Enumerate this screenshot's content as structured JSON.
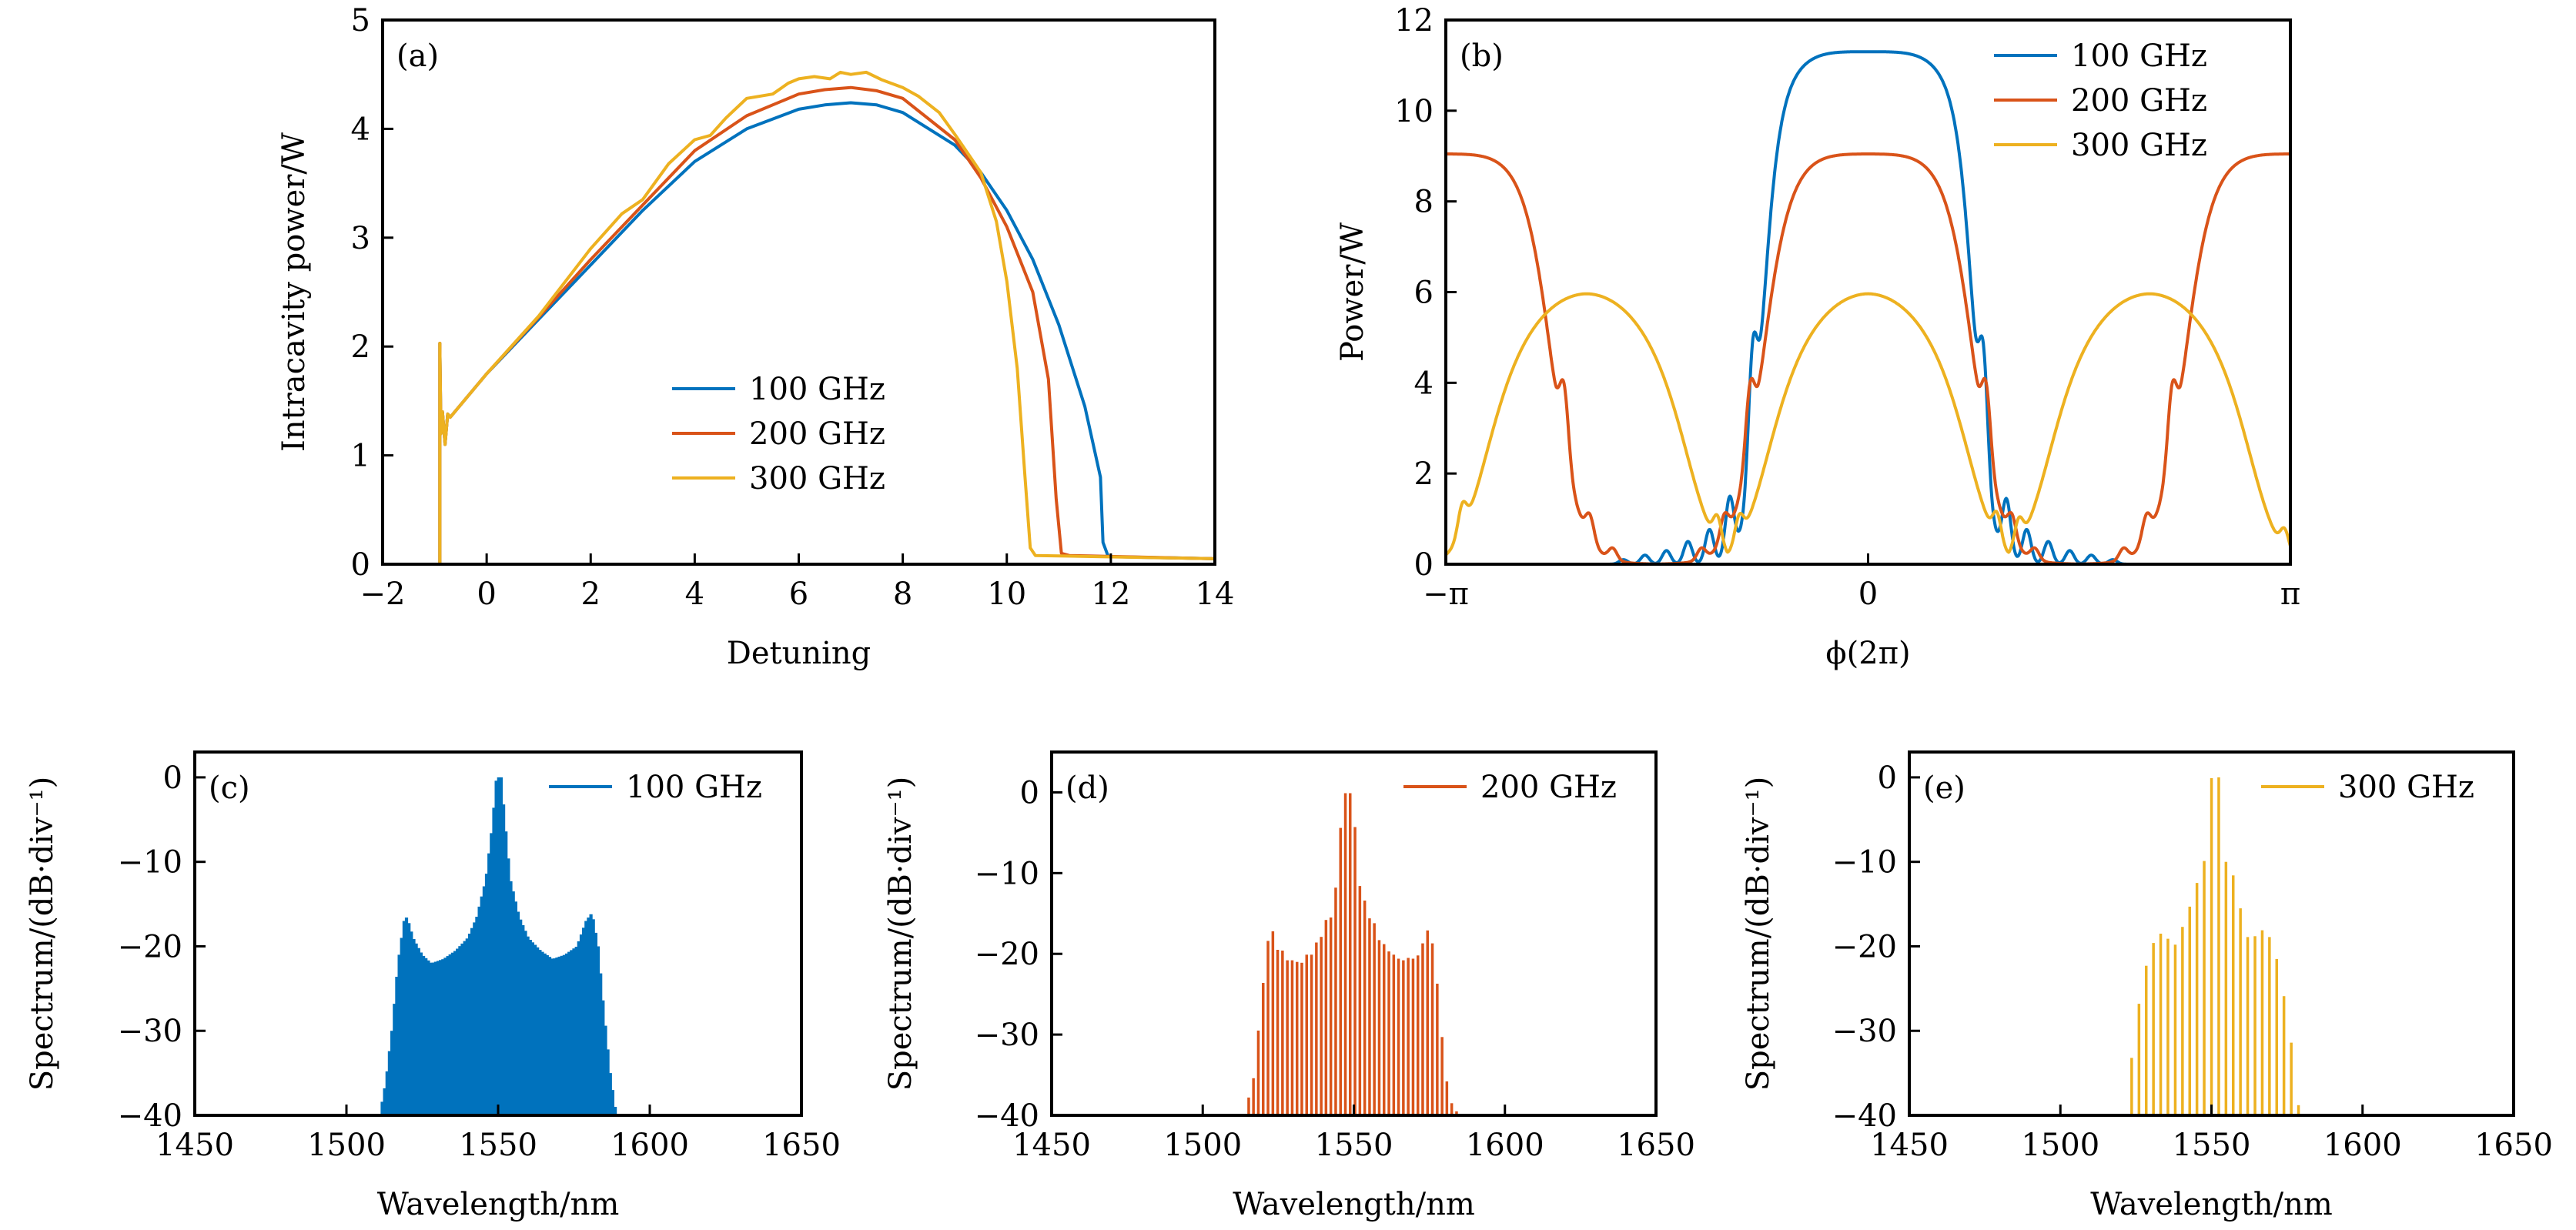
{
  "colors": {
    "c100": "#0072BD",
    "c200": "#D95319",
    "c300": "#EDB120",
    "axis": "#000000"
  },
  "chart_data": [
    {
      "id": "a",
      "type": "line",
      "panel_label": "(a)",
      "xlabel": "Detuning",
      "ylabel": "Intracavity power/W",
      "xlim": [
        -2,
        14
      ],
      "ylim": [
        0,
        5
      ],
      "xticks": [
        -2,
        0,
        2,
        4,
        6,
        8,
        10,
        12,
        14
      ],
      "xtick_labels": [
        "−2",
        "0",
        "2",
        "4",
        "6",
        "8",
        "10",
        "12",
        "14"
      ],
      "yticks": [
        0,
        1,
        2,
        3,
        4,
        5
      ],
      "ytick_labels": [
        "0",
        "1",
        "2",
        "3",
        "4",
        "5"
      ],
      "legend": {
        "placement": "center",
        "entries": [
          "100 GHz",
          "200 GHz",
          "300 GHz"
        ]
      },
      "series": [
        {
          "name": "100 GHz",
          "color_key": "c100",
          "x": [
            -0.9,
            -0.9,
            -0.88,
            -0.85,
            -0.8,
            -0.75,
            -0.7,
            0,
            1,
            2,
            3,
            4,
            5,
            6,
            6.5,
            7,
            7.5,
            8,
            9,
            9.5,
            10,
            10.5,
            11,
            11.5,
            11.8,
            11.85,
            11.95,
            14
          ],
          "y": [
            0,
            2.03,
            1.2,
            1.4,
            1.1,
            1.38,
            1.35,
            1.75,
            2.25,
            2.75,
            3.25,
            3.7,
            4.0,
            4.18,
            4.22,
            4.24,
            4.22,
            4.15,
            3.85,
            3.6,
            3.25,
            2.8,
            2.2,
            1.45,
            0.8,
            0.2,
            0.07,
            0.05
          ]
        },
        {
          "name": "200 GHz",
          "color_key": "c200",
          "x": [
            -0.9,
            -0.9,
            -0.88,
            -0.85,
            -0.8,
            -0.75,
            -0.7,
            0,
            1,
            2,
            3,
            4,
            5,
            6,
            6.5,
            7,
            7.5,
            8,
            9,
            9.5,
            10,
            10.5,
            10.8,
            10.95,
            11.05,
            11.2,
            14
          ],
          "y": [
            0,
            2.03,
            1.2,
            1.4,
            1.1,
            1.38,
            1.35,
            1.75,
            2.27,
            2.8,
            3.3,
            3.8,
            4.12,
            4.32,
            4.36,
            4.38,
            4.35,
            4.28,
            3.9,
            3.55,
            3.1,
            2.5,
            1.7,
            0.6,
            0.1,
            0.08,
            0.05
          ]
        },
        {
          "name": "300 GHz",
          "color_key": "c300",
          "x": [
            -0.9,
            -0.9,
            -0.88,
            -0.85,
            -0.8,
            -0.75,
            -0.7,
            0,
            1,
            2,
            2.6,
            3,
            3.5,
            4,
            4.3,
            4.6,
            5,
            5.5,
            5.8,
            6,
            6.3,
            6.6,
            6.8,
            7,
            7.3,
            7.6,
            8,
            8.3,
            8.7,
            9,
            9.5,
            9.8,
            10,
            10.2,
            10.35,
            10.45,
            10.55,
            14
          ],
          "y": [
            0,
            2.03,
            1.2,
            1.4,
            1.1,
            1.38,
            1.35,
            1.75,
            2.28,
            2.9,
            3.22,
            3.35,
            3.68,
            3.9,
            3.94,
            4.1,
            4.28,
            4.32,
            4.42,
            4.46,
            4.48,
            4.46,
            4.52,
            4.5,
            4.52,
            4.45,
            4.38,
            4.3,
            4.15,
            3.95,
            3.6,
            3.15,
            2.6,
            1.8,
            0.8,
            0.15,
            0.08,
            0.05
          ]
        }
      ]
    },
    {
      "id": "b",
      "type": "line",
      "panel_label": "(b)",
      "xlabel": "ϕ(2π)",
      "ylabel": "Power/W",
      "xlim": [
        -3.14159,
        3.14159
      ],
      "ylim": [
        0,
        12
      ],
      "xticks": [
        -3.14159,
        0,
        3.14159
      ],
      "xtick_labels": [
        "−π",
        "0",
        "π"
      ],
      "yticks": [
        0,
        2,
        4,
        6,
        8,
        10,
        12
      ],
      "ytick_labels": [
        "0",
        "2",
        "4",
        "6",
        "8",
        "10",
        "12"
      ],
      "legend": {
        "placement": "top-right",
        "entries": [
          "100 GHz",
          "200 GHz",
          "300 GHz"
        ]
      },
      "series": [
        {
          "name": "100 GHz",
          "color_key": "c100",
          "pulses": [
            {
              "center": 0,
              "half_width": 0.8,
              "peak": 11.3,
              "edge": 0.06
            }
          ],
          "ripples": [
            {
              "pos": -0.86,
              "amp": 2.4
            },
            {
              "pos": -1.03,
              "amp": 1.3
            },
            {
              "pos": -1.18,
              "amp": 0.75
            },
            {
              "pos": -1.34,
              "amp": 0.5
            },
            {
              "pos": -1.5,
              "amp": 0.3
            },
            {
              "pos": -1.66,
              "amp": 0.2
            },
            {
              "pos": -1.82,
              "amp": 0.1
            },
            {
              "pos": 0.86,
              "amp": 2.3
            },
            {
              "pos": 1.03,
              "amp": 1.25
            },
            {
              "pos": 1.18,
              "amp": 0.75
            },
            {
              "pos": 1.34,
              "amp": 0.5
            },
            {
              "pos": 1.5,
              "amp": 0.3
            },
            {
              "pos": 1.66,
              "amp": 0.2
            },
            {
              "pos": 1.82,
              "amp": 0.1
            }
          ]
        },
        {
          "name": "200 GHz",
          "color_key": "c200",
          "pulses": [
            {
              "center": -3.14159,
              "half_width": 0.82,
              "peak": 9.05,
              "edge": 0.1
            },
            {
              "center": 0,
              "half_width": 0.82,
              "peak": 9.05,
              "edge": 0.1
            },
            {
              "center": 3.14159,
              "half_width": 0.82,
              "peak": 9.05,
              "edge": 0.1
            }
          ],
          "ripples": [
            {
              "pos": -2.26,
              "amp": 1.35
            },
            {
              "pos": -2.07,
              "amp": 0.55
            },
            {
              "pos": -1.9,
              "amp": 0.25
            },
            {
              "pos": -0.88,
              "amp": 1.35
            },
            {
              "pos": -1.07,
              "amp": 0.55
            },
            {
              "pos": -1.24,
              "amp": 0.25
            },
            {
              "pos": 0.88,
              "amp": 1.35
            },
            {
              "pos": 1.07,
              "amp": 0.55
            },
            {
              "pos": 1.24,
              "amp": 0.25
            },
            {
              "pos": 2.26,
              "amp": 1.35
            },
            {
              "pos": 2.07,
              "amp": 0.55
            },
            {
              "pos": 1.9,
              "amp": 0.25
            }
          ]
        },
        {
          "name": "300 GHz",
          "color_key": "c300",
          "pulses": [
            {
              "center": -2.094,
              "half_width": 0.82,
              "peak": 5.97,
              "edge": 0.12
            },
            {
              "center": 0,
              "half_width": 0.82,
              "peak": 5.97,
              "edge": 0.12
            },
            {
              "center": 2.094,
              "half_width": 0.82,
              "peak": 5.97,
              "edge": 0.12
            }
          ],
          "ripples": [
            {
              "pos": -3.02,
              "amp": 0.6
            },
            {
              "pos": -1.12,
              "amp": 0.6
            },
            {
              "pos": -0.96,
              "amp": 0.55
            },
            {
              "pos": 0.96,
              "amp": 0.6
            },
            {
              "pos": 1.12,
              "amp": 0.55
            },
            {
              "pos": 3.1,
              "amp": 0.45
            }
          ]
        }
      ]
    },
    {
      "id": "c",
      "type": "bar",
      "panel_label": "(c)",
      "xlabel": "Wavelength/nm",
      "ylabel": "Spectrum/(dB·div⁻¹)",
      "xlim": [
        1450,
        1650
      ],
      "ylim": [
        -40,
        3
      ],
      "xticks": [
        1450,
        1500,
        1550,
        1600,
        1650
      ],
      "xtick_labels": [
        "1450",
        "1500",
        "1550",
        "1600",
        "1650"
      ],
      "yticks": [
        -40,
        -30,
        -20,
        -10,
        0
      ],
      "ytick_labels": [
        "−40",
        "−30",
        "−20",
        "−10",
        "0"
      ],
      "legend": {
        "placement": "top-right",
        "entries": [
          "100 GHz"
        ]
      },
      "series": [
        {
          "name": "100 GHz",
          "color_key": "c100",
          "spacing_nm": 0.8,
          "start_nm": 1511,
          "envelope": [
            [
              1511,
              -40
            ],
            [
              1513,
              -36
            ],
            [
              1515,
              -30
            ],
            [
              1517,
              -22
            ],
            [
              1519,
              -17
            ],
            [
              1520,
              -16.5
            ],
            [
              1522,
              -19
            ],
            [
              1525,
              -21
            ],
            [
              1528,
              -22
            ],
            [
              1532,
              -21.5
            ],
            [
              1536,
              -20.5
            ],
            [
              1540,
              -19
            ],
            [
              1543,
              -16.5
            ],
            [
              1546,
              -12
            ],
            [
              1548,
              -6
            ],
            [
              1549.5,
              0
            ],
            [
              1551,
              0
            ],
            [
              1552.5,
              -6
            ],
            [
              1554,
              -12
            ],
            [
              1557,
              -16.5
            ],
            [
              1560,
              -19
            ],
            [
              1564,
              -20.5
            ],
            [
              1568,
              -21.5
            ],
            [
              1572,
              -21
            ],
            [
              1576,
              -20
            ],
            [
              1579,
              -17
            ],
            [
              1581,
              -16
            ],
            [
              1583,
              -20
            ],
            [
              1585,
              -28
            ],
            [
              1587,
              -35
            ],
            [
              1589,
              -40
            ]
          ]
        }
      ]
    },
    {
      "id": "d",
      "type": "bar",
      "panel_label": "(d)",
      "xlabel": "Wavelength/nm",
      "ylabel": "Spectrum/(dB·div⁻¹)",
      "xlim": [
        1450,
        1650
      ],
      "ylim": [
        -40,
        5
      ],
      "xticks": [
        1450,
        1500,
        1550,
        1600,
        1650
      ],
      "xtick_labels": [
        "1450",
        "1500",
        "1550",
        "1600",
        "1650"
      ],
      "yticks": [
        -40,
        -30,
        -20,
        -10,
        0
      ],
      "ytick_labels": [
        "−40",
        "−30",
        "−20",
        "−10",
        "0"
      ],
      "legend": {
        "placement": "top-right",
        "entries": [
          "200 GHz"
        ]
      },
      "series": [
        {
          "name": "200 GHz",
          "color_key": "c200",
          "lines_nm": [
            1515.2,
            1516.8,
            1518.4,
            1520,
            1521.6,
            1523.2,
            1524.8,
            1526.4,
            1528,
            1529.6,
            1531.2,
            1532.8,
            1534.4,
            1536,
            1537.6,
            1539.2,
            1540.8,
            1542.4,
            1544,
            1545.6,
            1547.2,
            1548.8,
            1550.4,
            1552,
            1553.6,
            1555.2,
            1556.8,
            1558.4,
            1560,
            1561.6,
            1563.2,
            1564.8,
            1566.4,
            1568,
            1569.6,
            1571.2,
            1572.8,
            1574.4,
            1576,
            1577.6,
            1579.2,
            1580.8,
            1582.4,
            1584,
            1585.6
          ],
          "values_db": [
            -37.8,
            -35.4,
            -29.5,
            -23.6,
            -18.4,
            -17.2,
            -19.5,
            -19.6,
            -20.8,
            -20.8,
            -21,
            -21.1,
            -20.1,
            -20.1,
            -18.6,
            -17.9,
            -15.8,
            -15.5,
            -11.8,
            -4.4,
            -0.1,
            -0.1,
            -4.3,
            -11.6,
            -13.4,
            -15.6,
            -16.2,
            -18.3,
            -18.8,
            -19.7,
            -20.1,
            -20.6,
            -20.8,
            -20.5,
            -20.6,
            -20.2,
            -18.7,
            -17.1,
            -18.7,
            -23.7,
            -30.3,
            -35.8,
            -38.5,
            -39.5,
            -40
          ]
        }
      ]
    },
    {
      "id": "e",
      "type": "bar",
      "panel_label": "(e)",
      "xlabel": "Wavelength/nm",
      "ylabel": "Spectrum/(dB·div⁻¹)",
      "xlim": [
        1450,
        1650
      ],
      "ylim": [
        -40,
        3
      ],
      "xticks": [
        1450,
        1500,
        1550,
        1600,
        1650
      ],
      "xtick_labels": [
        "1450",
        "1500",
        "1550",
        "1600",
        "1650"
      ],
      "yticks": [
        -40,
        -30,
        -20,
        -10,
        0
      ],
      "ytick_labels": [
        "−40",
        "−30",
        "−20",
        "−10",
        "0"
      ],
      "legend": {
        "placement": "top-right",
        "entries": [
          "300 GHz"
        ]
      },
      "series": [
        {
          "name": "300 GHz",
          "color_key": "c300",
          "lines_nm": [
            1523.6,
            1526,
            1528.4,
            1530.8,
            1533.2,
            1535.6,
            1538,
            1540.4,
            1542.8,
            1545.2,
            1547.6,
            1550,
            1552.4,
            1554.8,
            1557.2,
            1559.6,
            1562,
            1564.4,
            1566.8,
            1569.2,
            1571.6,
            1574,
            1576.4,
            1578.8
          ],
          "values_db": [
            -33.2,
            -26.8,
            -22.3,
            -19.6,
            -18.5,
            -19.1,
            -19.8,
            -17.7,
            -15.3,
            -12.5,
            -9.9,
            -0.1,
            0,
            -10,
            -11.6,
            -15.5,
            -18.9,
            -18.8,
            -18.1,
            -18.9,
            -21.5,
            -25.9,
            -31.4,
            -38.8
          ]
        }
      ]
    }
  ]
}
